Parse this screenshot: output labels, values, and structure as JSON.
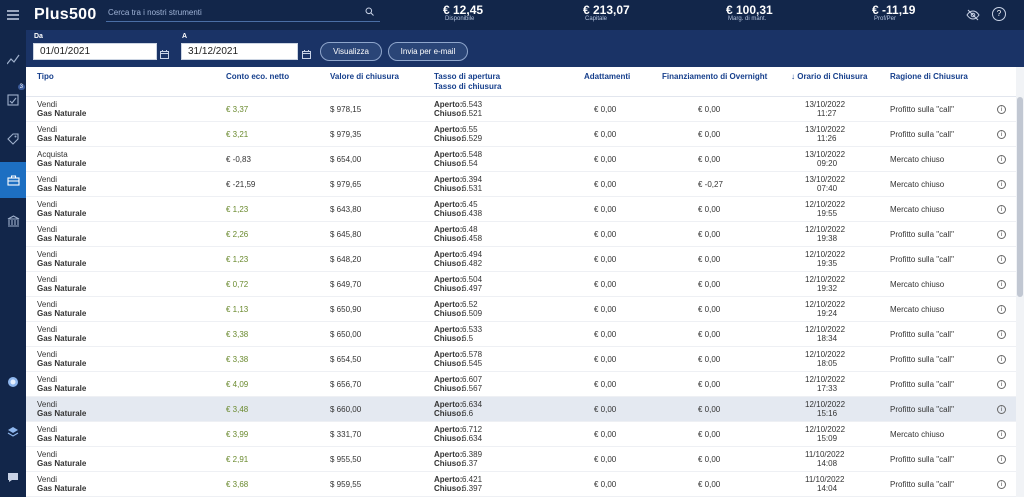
{
  "app": {
    "logo": "Plus500"
  },
  "search": {
    "placeholder": "Cerca tra i nostri strumenti"
  },
  "account": [
    {
      "value": "€ 12,45",
      "label": "Disponibile"
    },
    {
      "value": "€ 213,07",
      "label": "Capitale"
    },
    {
      "value": "€ 100,31",
      "label": "Marg. di mant."
    },
    {
      "value": "€ -11,19",
      "label": "Prof/Per"
    }
  ],
  "sidebar": {
    "badge": "3"
  },
  "filters": {
    "from_label": "Da",
    "from_value": "01/01/2021",
    "to_label": "A",
    "to_value": "31/12/2021",
    "show_button": "Visualizza",
    "email_button": "Invia per e-mail"
  },
  "columns": {
    "type": "Tipo",
    "net": "Conto eco. netto",
    "close_value": "Valore di chiusura",
    "rate1": "Tasso di apertura",
    "rate2": "Tasso di chiusura",
    "adjust": "Adattamenti",
    "overnight": "Finanziamento di Overnight",
    "time": "↓ Orario di Chiusura",
    "reason": "Ragione di Chiusura"
  },
  "labels": {
    "open": "Aperto:",
    "closed": "Chiuso:"
  },
  "rows": [
    {
      "action": "Vendi",
      "instrument": "Gas Naturale",
      "net": "€ 3,37",
      "close": "$ 978,15",
      "open": "6.543",
      "closed": "6.521",
      "adj": "€ 0,00",
      "ovn": "€ 0,00",
      "date": "13/10/2022",
      "time": "11:27",
      "reason": "Profitto sulla \"call\""
    },
    {
      "action": "Vendi",
      "instrument": "Gas Naturale",
      "net": "€ 3,21",
      "close": "$ 979,35",
      "open": "6.55",
      "closed": "6.529",
      "adj": "€ 0,00",
      "ovn": "€ 0,00",
      "date": "13/10/2022",
      "time": "11:26",
      "reason": "Profitto sulla \"call\""
    },
    {
      "action": "Acquista",
      "instrument": "Gas Naturale",
      "net": "€ -0,83",
      "close": "$ 654,00",
      "open": "6.548",
      "closed": "6.54",
      "adj": "€ 0,00",
      "ovn": "€ 0,00",
      "date": "13/10/2022",
      "time": "09:20",
      "reason": "Mercato chiuso"
    },
    {
      "action": "Vendi",
      "instrument": "Gas Naturale",
      "net": "€ -21,59",
      "close": "$ 979,65",
      "open": "6.394",
      "closed": "6.531",
      "adj": "€ 0,00",
      "ovn": "€ -0,27",
      "date": "13/10/2022",
      "time": "07:40",
      "reason": "Mercato chiuso"
    },
    {
      "action": "Vendi",
      "instrument": "Gas Naturale",
      "net": "€ 1,23",
      "close": "$ 643,80",
      "open": "6.45",
      "closed": "6.438",
      "adj": "€ 0,00",
      "ovn": "€ 0,00",
      "date": "12/10/2022",
      "time": "19:55",
      "reason": "Mercato chiuso"
    },
    {
      "action": "Vendi",
      "instrument": "Gas Naturale",
      "net": "€ 2,26",
      "close": "$ 645,80",
      "open": "6.48",
      "closed": "6.458",
      "adj": "€ 0,00",
      "ovn": "€ 0,00",
      "date": "12/10/2022",
      "time": "19:38",
      "reason": "Profitto sulla \"call\""
    },
    {
      "action": "Vendi",
      "instrument": "Gas Naturale",
      "net": "€ 1,23",
      "close": "$ 648,20",
      "open": "6.494",
      "closed": "6.482",
      "adj": "€ 0,00",
      "ovn": "€ 0,00",
      "date": "12/10/2022",
      "time": "19:35",
      "reason": "Profitto sulla \"call\""
    },
    {
      "action": "Vendi",
      "instrument": "Gas Naturale",
      "net": "€ 0,72",
      "close": "$ 649,70",
      "open": "6.504",
      "closed": "6.497",
      "adj": "€ 0,00",
      "ovn": "€ 0,00",
      "date": "12/10/2022",
      "time": "19:32",
      "reason": "Mercato chiuso"
    },
    {
      "action": "Vendi",
      "instrument": "Gas Naturale",
      "net": "€ 1,13",
      "close": "$ 650,90",
      "open": "6.52",
      "closed": "6.509",
      "adj": "€ 0,00",
      "ovn": "€ 0,00",
      "date": "12/10/2022",
      "time": "19:24",
      "reason": "Mercato chiuso"
    },
    {
      "action": "Vendi",
      "instrument": "Gas Naturale",
      "net": "€ 3,38",
      "close": "$ 650,00",
      "open": "6.533",
      "closed": "6.5",
      "adj": "€ 0,00",
      "ovn": "€ 0,00",
      "date": "12/10/2022",
      "time": "18:34",
      "reason": "Profitto sulla \"call\""
    },
    {
      "action": "Vendi",
      "instrument": "Gas Naturale",
      "net": "€ 3,38",
      "close": "$ 654,50",
      "open": "6.578",
      "closed": "6.545",
      "adj": "€ 0,00",
      "ovn": "€ 0,00",
      "date": "12/10/2022",
      "time": "18:05",
      "reason": "Profitto sulla \"call\""
    },
    {
      "action": "Vendi",
      "instrument": "Gas Naturale",
      "net": "€ 4,09",
      "close": "$ 656,70",
      "open": "6.607",
      "closed": "6.567",
      "adj": "€ 0,00",
      "ovn": "€ 0,00",
      "date": "12/10/2022",
      "time": "17:33",
      "reason": "Profitto sulla \"call\""
    },
    {
      "action": "Vendi",
      "instrument": "Gas Naturale",
      "net": "€ 3,48",
      "close": "$ 660,00",
      "open": "6.634",
      "closed": "6.6",
      "adj": "€ 0,00",
      "ovn": "€ 0,00",
      "date": "12/10/2022",
      "time": "15:16",
      "reason": "Profitto sulla \"call\"",
      "highlight": true
    },
    {
      "action": "Vendi",
      "instrument": "Gas Naturale",
      "net": "€ 3,99",
      "close": "$ 331,70",
      "open": "6.712",
      "closed": "6.634",
      "adj": "€ 0,00",
      "ovn": "€ 0,00",
      "date": "12/10/2022",
      "time": "15:09",
      "reason": "Mercato chiuso"
    },
    {
      "action": "Vendi",
      "instrument": "Gas Naturale",
      "net": "€ 2,91",
      "close": "$ 955,50",
      "open": "6.389",
      "closed": "6.37",
      "adj": "€ 0,00",
      "ovn": "€ 0,00",
      "date": "11/10/2022",
      "time": "14:08",
      "reason": "Profitto sulla \"call\""
    },
    {
      "action": "Vendi",
      "instrument": "Gas Naturale",
      "net": "€ 3,68",
      "close": "$ 959,55",
      "open": "6.421",
      "closed": "6.397",
      "adj": "€ 0,00",
      "ovn": "€ 0,00",
      "date": "11/10/2022",
      "time": "14:04",
      "reason": "Profitto sulla \"call\""
    }
  ]
}
